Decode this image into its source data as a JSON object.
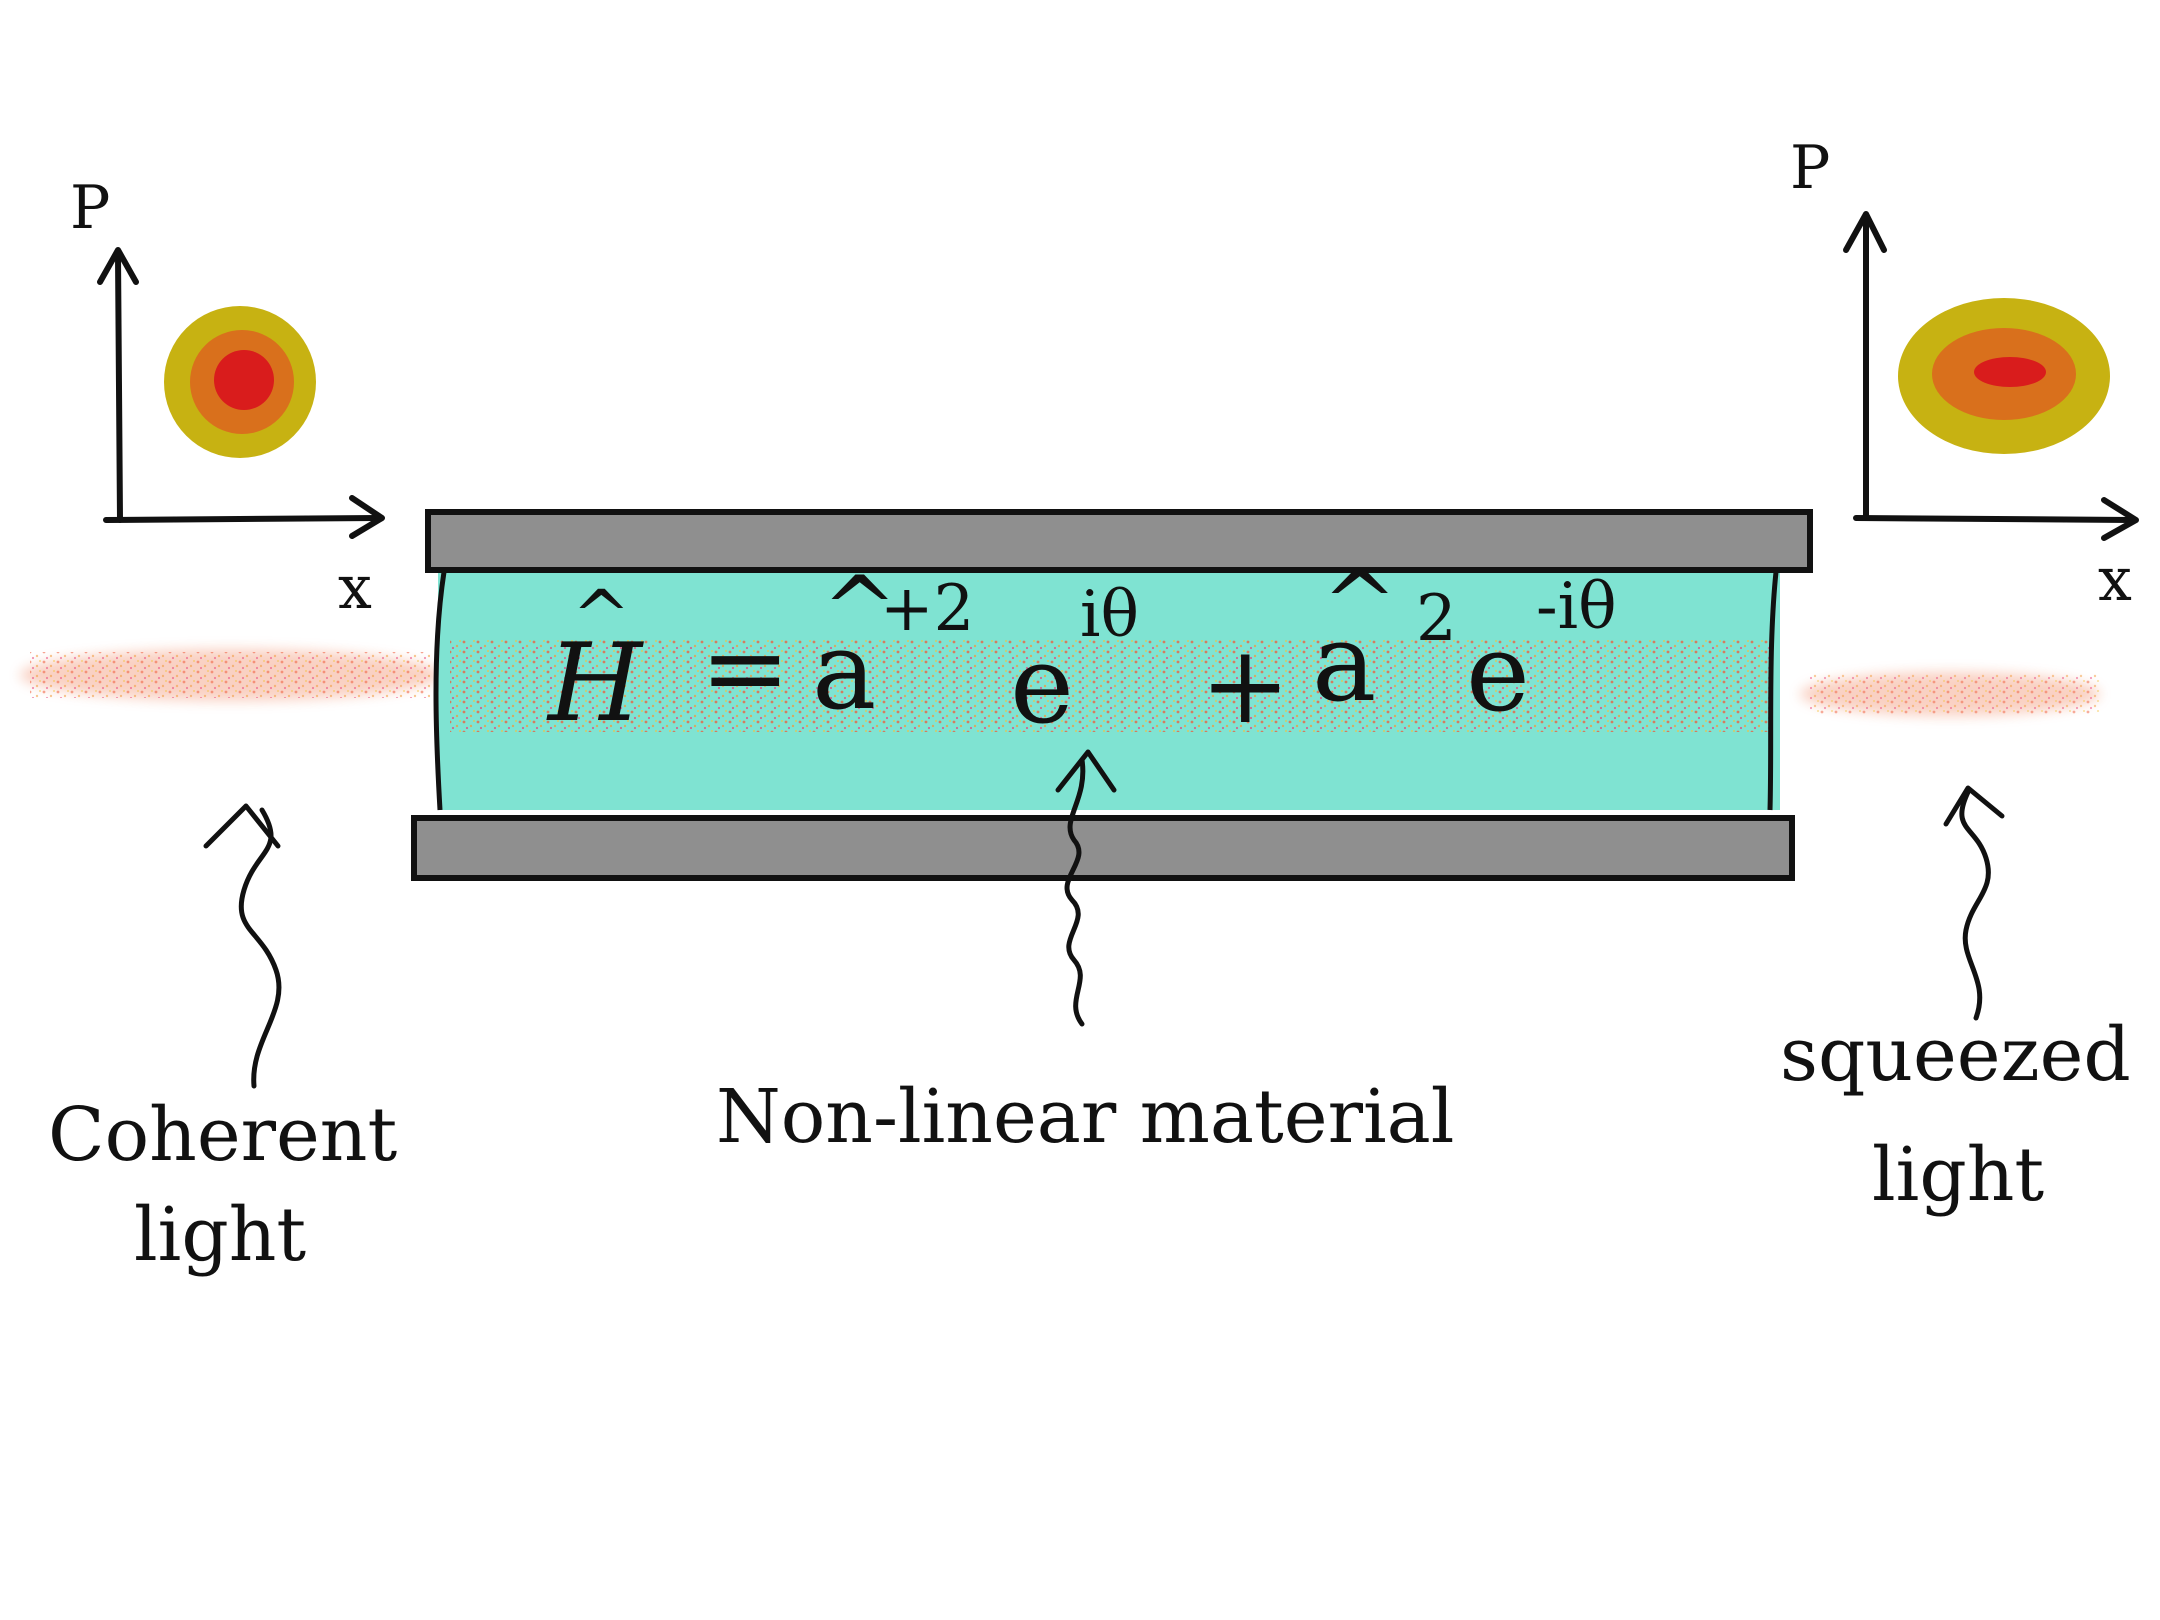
{
  "colors": {
    "background": "#ffffff",
    "ink": "#111111",
    "material": "#7fe3d2",
    "mirror": "#8f8f8f",
    "beam": "#ef7d55",
    "phase_outer": "#c7b212",
    "phase_mid": "#d9701c",
    "phase_inner": "#d91c1c"
  },
  "left_plot": {
    "y_axis_label": "P",
    "x_axis_label": "x"
  },
  "right_plot": {
    "y_axis_label": "P",
    "x_axis_label": "x"
  },
  "equation": {
    "H": "H",
    "equals": "=",
    "a1": "a",
    "dagger_power": "+2",
    "e1": "e",
    "exp1": "iθ",
    "plus": "+",
    "a2": "a",
    "power2": "2",
    "e2": "e",
    "exp2": "-iθ"
  },
  "labels": {
    "coherent_line1": "Coherent",
    "coherent_line2": "light",
    "material": "Non-linear material",
    "squeezed_line1": "squeezed",
    "squeezed_line2": "light"
  }
}
